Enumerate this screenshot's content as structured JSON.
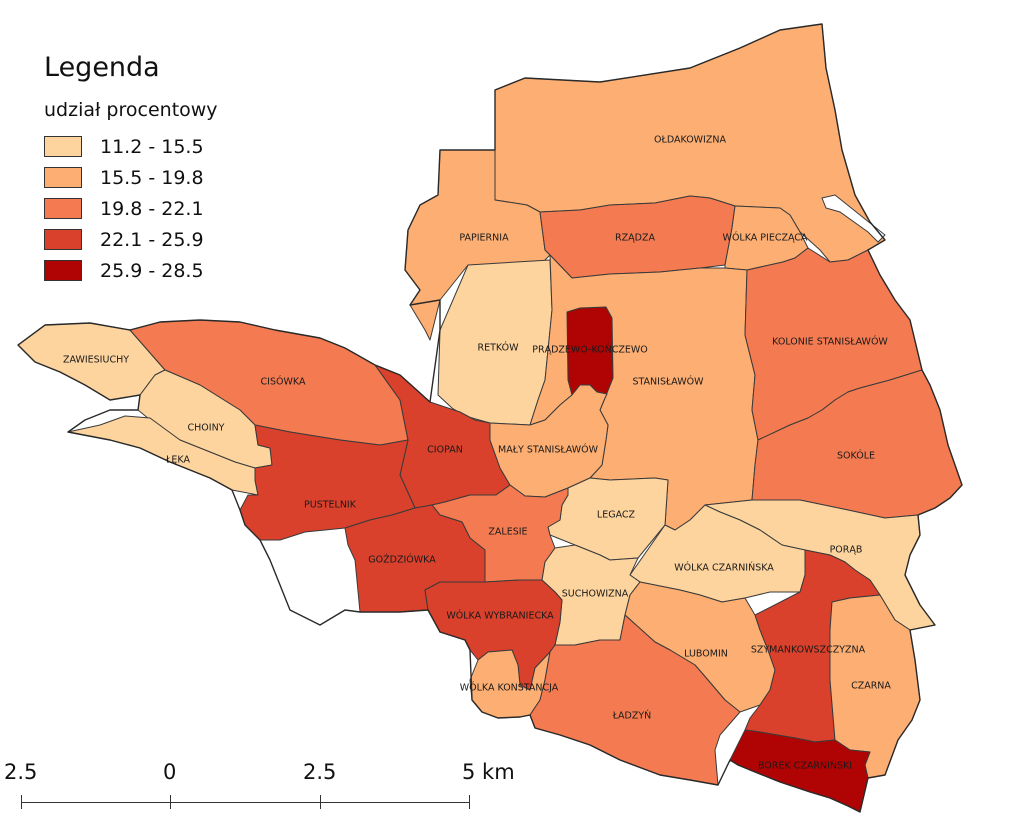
{
  "legend": {
    "title": "Legenda",
    "subtitle": "udział procentowy",
    "classes": [
      {
        "label": "11.2 - 15.5",
        "color": "#fdd49e"
      },
      {
        "label": "15.5 - 19.8",
        "color": "#fdae72"
      },
      {
        "label": "19.8 - 22.1",
        "color": "#f47b51"
      },
      {
        "label": "22.1 - 25.9",
        "color": "#d9412c"
      },
      {
        "label": "25.9 - 28.5",
        "color": "#b00404"
      }
    ]
  },
  "scale": {
    "labels": [
      "2.5",
      "0",
      "2.5",
      "5 km"
    ]
  },
  "regions": [
    {
      "name": "OŁDAKOWIZNA",
      "class": 1
    },
    {
      "name": "PAPIERNIA",
      "class": 1
    },
    {
      "name": "RZĄDZA",
      "class": 2
    },
    {
      "name": "WÓLKA PIECZĄCA",
      "class": 1
    },
    {
      "name": "RETKÓW",
      "class": 0
    },
    {
      "name": "PRĄDZEWO-KOŃCZEWO",
      "class": 4
    },
    {
      "name": "STANISŁAWÓW",
      "class": 1
    },
    {
      "name": "KOLONIE STANISŁAWÓW",
      "class": 2
    },
    {
      "name": "ZAWIESIUCHY",
      "class": 0
    },
    {
      "name": "CISÓWKA",
      "class": 2
    },
    {
      "name": "CHOINY",
      "class": 0
    },
    {
      "name": "ŁĘKA",
      "class": 0
    },
    {
      "name": "CIOPAN",
      "class": 3
    },
    {
      "name": "MAŁY STANISŁAWÓW",
      "class": 1
    },
    {
      "name": "SOKÓLE",
      "class": 2
    },
    {
      "name": "PUSTELNIK",
      "class": 3
    },
    {
      "name": "LEGACZ",
      "class": 0
    },
    {
      "name": "ZALESIE",
      "class": 2
    },
    {
      "name": "PORĄB",
      "class": 0
    },
    {
      "name": "GOŹDZIÓWKA",
      "class": 3
    },
    {
      "name": "WÓLKA CZARNIŃSKA",
      "class": 0
    },
    {
      "name": "SUCHOWIZNA",
      "class": 0
    },
    {
      "name": "WÓLKA WYBRANIECKA",
      "class": 3
    },
    {
      "name": "LUBOMIN",
      "class": 1
    },
    {
      "name": "SZYMANKOWSZCZYZNA",
      "class": 3
    },
    {
      "name": "CZARNA",
      "class": 1
    },
    {
      "name": "WÓLKA KONSTANCJA",
      "class": 1
    },
    {
      "name": "ŁADZYŃ",
      "class": 2
    },
    {
      "name": "BOREK CZARNIŃSKI",
      "class": 4
    }
  ]
}
